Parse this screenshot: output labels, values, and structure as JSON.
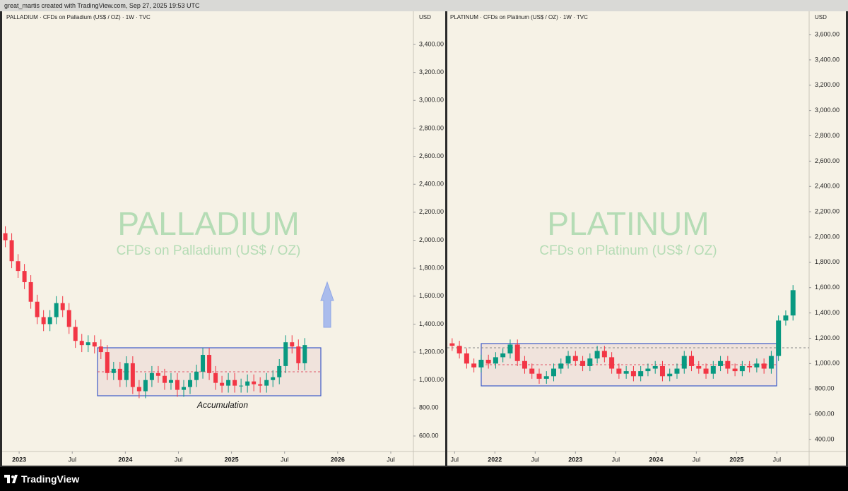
{
  "header": {
    "text": "great_martis created with TradingView.com, Sep 27, 2025 19:53 UTC"
  },
  "footer": {
    "brand": "TradingView"
  },
  "chart_data": [
    {
      "type": "candlestick",
      "title": "PALLADIUM · CFDs on Palladium (US$ / OZ) · 1W · TVC",
      "watermark": "PALLADIUM",
      "watermark_subtitle": "CFDs on Palladium (US$ / OZ)",
      "currency": "USD",
      "annotation": "Accumulation",
      "up_color": "#089981",
      "down_color": "#f23645",
      "x": [
        2022.87,
        2022.93,
        2022.99,
        2023.05,
        2023.11,
        2023.17,
        2023.23,
        2023.29,
        2023.35,
        2023.41,
        2023.47,
        2023.53,
        2023.59,
        2023.65,
        2023.71,
        2023.77,
        2023.83,
        2023.89,
        2023.95,
        2024.01,
        2024.07,
        2024.13,
        2024.19,
        2024.25,
        2024.31,
        2024.37,
        2024.43,
        2024.49,
        2024.55,
        2024.61,
        2024.67,
        2024.73,
        2024.79,
        2024.85,
        2024.91,
        2024.97,
        2025.03,
        2025.09,
        2025.15,
        2025.21,
        2025.27,
        2025.33,
        2025.39,
        2025.45,
        2025.51,
        2025.57,
        2025.63,
        2025.69
      ],
      "open": [
        2050,
        2000,
        1850,
        1780,
        1700,
        1560,
        1450,
        1400,
        1450,
        1550,
        1500,
        1380,
        1280,
        1250,
        1270,
        1240,
        1200,
        1050,
        1080,
        1000,
        1120,
        950,
        920,
        1000,
        1050,
        1030,
        980,
        1000,
        930,
        950,
        1000,
        1060,
        1180,
        1050,
        980,
        960,
        1000,
        960,
        960,
        990,
        970,
        960,
        1000,
        1020,
        1100,
        1270,
        1240,
        1120
      ],
      "high": [
        2100,
        2050,
        1900,
        1830,
        1750,
        1610,
        1500,
        1500,
        1600,
        1600,
        1550,
        1430,
        1330,
        1320,
        1320,
        1290,
        1250,
        1130,
        1130,
        1170,
        1170,
        1000,
        1050,
        1100,
        1100,
        1080,
        1050,
        1050,
        1000,
        1050,
        1110,
        1230,
        1230,
        1100,
        1030,
        1050,
        1050,
        1010,
        1040,
        1040,
        1020,
        1050,
        1070,
        1150,
        1320,
        1320,
        1290,
        1300
      ],
      "low": [
        1950,
        1800,
        1730,
        1650,
        1510,
        1400,
        1350,
        1350,
        1400,
        1450,
        1330,
        1230,
        1200,
        1200,
        1190,
        1150,
        1000,
        1000,
        950,
        950,
        900,
        870,
        870,
        950,
        980,
        930,
        930,
        880,
        880,
        900,
        950,
        1010,
        1000,
        930,
        910,
        910,
        910,
        910,
        910,
        920,
        910,
        910,
        950,
        970,
        1050,
        1190,
        1070,
        1070
      ],
      "close": [
        2000,
        1850,
        1780,
        1700,
        1560,
        1450,
        1400,
        1450,
        1550,
        1500,
        1380,
        1280,
        1250,
        1270,
        1240,
        1200,
        1050,
        1080,
        1000,
        1120,
        950,
        920,
        1000,
        1050,
        1030,
        980,
        1000,
        930,
        950,
        1000,
        1060,
        1180,
        1050,
        980,
        960,
        1000,
        960,
        960,
        990,
        970,
        960,
        1000,
        1020,
        1100,
        1270,
        1240,
        1120,
        1250
      ],
      "xlim": [
        2022.853,
        2026.713
      ],
      "xticks": [
        2023,
        {
          "value": 2023.5,
          "label": "Jul"
        },
        2024,
        {
          "value": 2024.5,
          "label": "Jul"
        },
        2025,
        {
          "value": 2025.5,
          "label": "Jul"
        },
        2026,
        {
          "value": 2026.5,
          "label": "Jul"
        }
      ],
      "ylim": [
        489,
        3627
      ],
      "yticks": [
        {
          "value": 600,
          "label": "600.00"
        },
        {
          "value": 800,
          "label": "800.00"
        },
        {
          "value": 1000,
          "label": "1,000.00"
        },
        {
          "value": 1200,
          "label": "1,200.00"
        },
        {
          "value": 1400,
          "label": "1,400.00"
        },
        {
          "value": 1600,
          "label": "1,600.00"
        },
        {
          "value": 1800,
          "label": "1,800.00"
        },
        {
          "value": 2000,
          "label": "2,000.00"
        },
        {
          "value": 2200,
          "label": "2,200.00"
        },
        {
          "value": 2400,
          "label": "2,400.00"
        },
        {
          "value": 2600,
          "label": "2,600.00"
        },
        {
          "value": 2800,
          "label": "2,800.00"
        },
        {
          "value": 3000,
          "label": "3,000.00"
        },
        {
          "value": 3200,
          "label": "3,200.00"
        },
        {
          "value": 3400,
          "label": "3,400.00"
        }
      ]
    },
    {
      "type": "candlestick",
      "title": "PLATINUM · CFDs on Platinum (US$ / OZ) · 1W · TVC",
      "watermark": "PLATINUM",
      "watermark_subtitle": "CFDs on Platinum (US$ / OZ)",
      "currency": "USD",
      "up_color": "#089981",
      "down_color": "#f23645",
      "x": [
        2021.47,
        2021.56,
        2021.65,
        2021.74,
        2021.83,
        2021.92,
        2022.01,
        2022.1,
        2022.19,
        2022.28,
        2022.37,
        2022.46,
        2022.55,
        2022.64,
        2022.73,
        2022.82,
        2022.91,
        2023,
        2023.09,
        2023.18,
        2023.27,
        2023.36,
        2023.45,
        2023.54,
        2023.63,
        2023.72,
        2023.81,
        2023.9,
        2023.99,
        2024.08,
        2024.17,
        2024.26,
        2024.35,
        2024.44,
        2024.53,
        2024.62,
        2024.71,
        2024.8,
        2024.89,
        2024.98,
        2025.07,
        2025.16,
        2025.25,
        2025.34,
        2025.43,
        2025.52,
        2025.61,
        2025.7
      ],
      "open": [
        1160,
        1140,
        1080,
        1000,
        970,
        1030,
        1000,
        1050,
        1080,
        1150,
        1020,
        960,
        920,
        880,
        900,
        960,
        1000,
        1060,
        1020,
        980,
        1040,
        1100,
        1050,
        960,
        920,
        940,
        900,
        940,
        960,
        980,
        900,
        920,
        960,
        1060,
        980,
        960,
        920,
        980,
        1020,
        960,
        940,
        980,
        970,
        1000,
        960,
        1060,
        1340,
        1380
      ],
      "high": [
        1200,
        1180,
        1120,
        1040,
        1070,
        1070,
        1090,
        1120,
        1190,
        1190,
        1060,
        1000,
        960,
        940,
        1000,
        1040,
        1100,
        1100,
        1060,
        1080,
        1140,
        1140,
        1090,
        1000,
        980,
        980,
        980,
        1000,
        1020,
        1020,
        960,
        1000,
        1100,
        1100,
        1020,
        1000,
        1020,
        1060,
        1060,
        1000,
        1020,
        1020,
        1040,
        1040,
        1100,
        1380,
        1420,
        1620
      ],
      "low": [
        1100,
        1040,
        960,
        930,
        930,
        960,
        960,
        1010,
        1040,
        980,
        920,
        880,
        840,
        840,
        860,
        920,
        960,
        980,
        940,
        940,
        1000,
        1010,
        920,
        880,
        880,
        860,
        860,
        900,
        920,
        860,
        860,
        880,
        920,
        940,
        920,
        880,
        880,
        940,
        920,
        900,
        900,
        930,
        930,
        920,
        920,
        1020,
        1300,
        1340
      ],
      "close": [
        1140,
        1080,
        1000,
        970,
        1030,
        1000,
        1050,
        1080,
        1150,
        1020,
        960,
        920,
        880,
        900,
        960,
        1000,
        1060,
        1020,
        980,
        1040,
        1100,
        1050,
        960,
        920,
        940,
        900,
        940,
        960,
        980,
        900,
        920,
        960,
        1060,
        980,
        960,
        920,
        980,
        1020,
        960,
        940,
        980,
        970,
        1000,
        960,
        1060,
        1340,
        1380,
        1580
      ],
      "xlim": [
        2021.41,
        2025.9
      ],
      "xticks": [
        {
          "value": 2021.5,
          "label": "Jul"
        },
        2022,
        {
          "value": 2022.5,
          "label": "Jul"
        },
        2023,
        {
          "value": 2023.5,
          "label": "Jul"
        },
        2024,
        {
          "value": 2024.5,
          "label": "Jul"
        },
        2025,
        {
          "value": 2025.5,
          "label": "Jul"
        }
      ],
      "ylim": [
        305,
        3773
      ],
      "yticks": [
        {
          "value": 400,
          "label": "400.00"
        },
        {
          "value": 600,
          "label": "600.00"
        },
        {
          "value": 800,
          "label": "800.00"
        },
        {
          "value": 1000,
          "label": "1,000.00"
        },
        {
          "value": 1200,
          "label": "1,200.00"
        },
        {
          "value": 1400,
          "label": "1,400.00"
        },
        {
          "value": 1600,
          "label": "1,600.00"
        },
        {
          "value": 1800,
          "label": "1,800.00"
        },
        {
          "value": 2000,
          "label": "2,000.00"
        },
        {
          "value": 2200,
          "label": "2,200.00"
        },
        {
          "value": 2400,
          "label": "2,400.00"
        },
        {
          "value": 2600,
          "label": "2,600.00"
        },
        {
          "value": 2800,
          "label": "2,800.00"
        },
        {
          "value": 3000,
          "label": "3,000.00"
        },
        {
          "value": 3200,
          "label": "3,200.00"
        },
        {
          "value": 3400,
          "label": "3,400.00"
        },
        {
          "value": 3600,
          "label": "3,600.00"
        }
      ]
    }
  ]
}
